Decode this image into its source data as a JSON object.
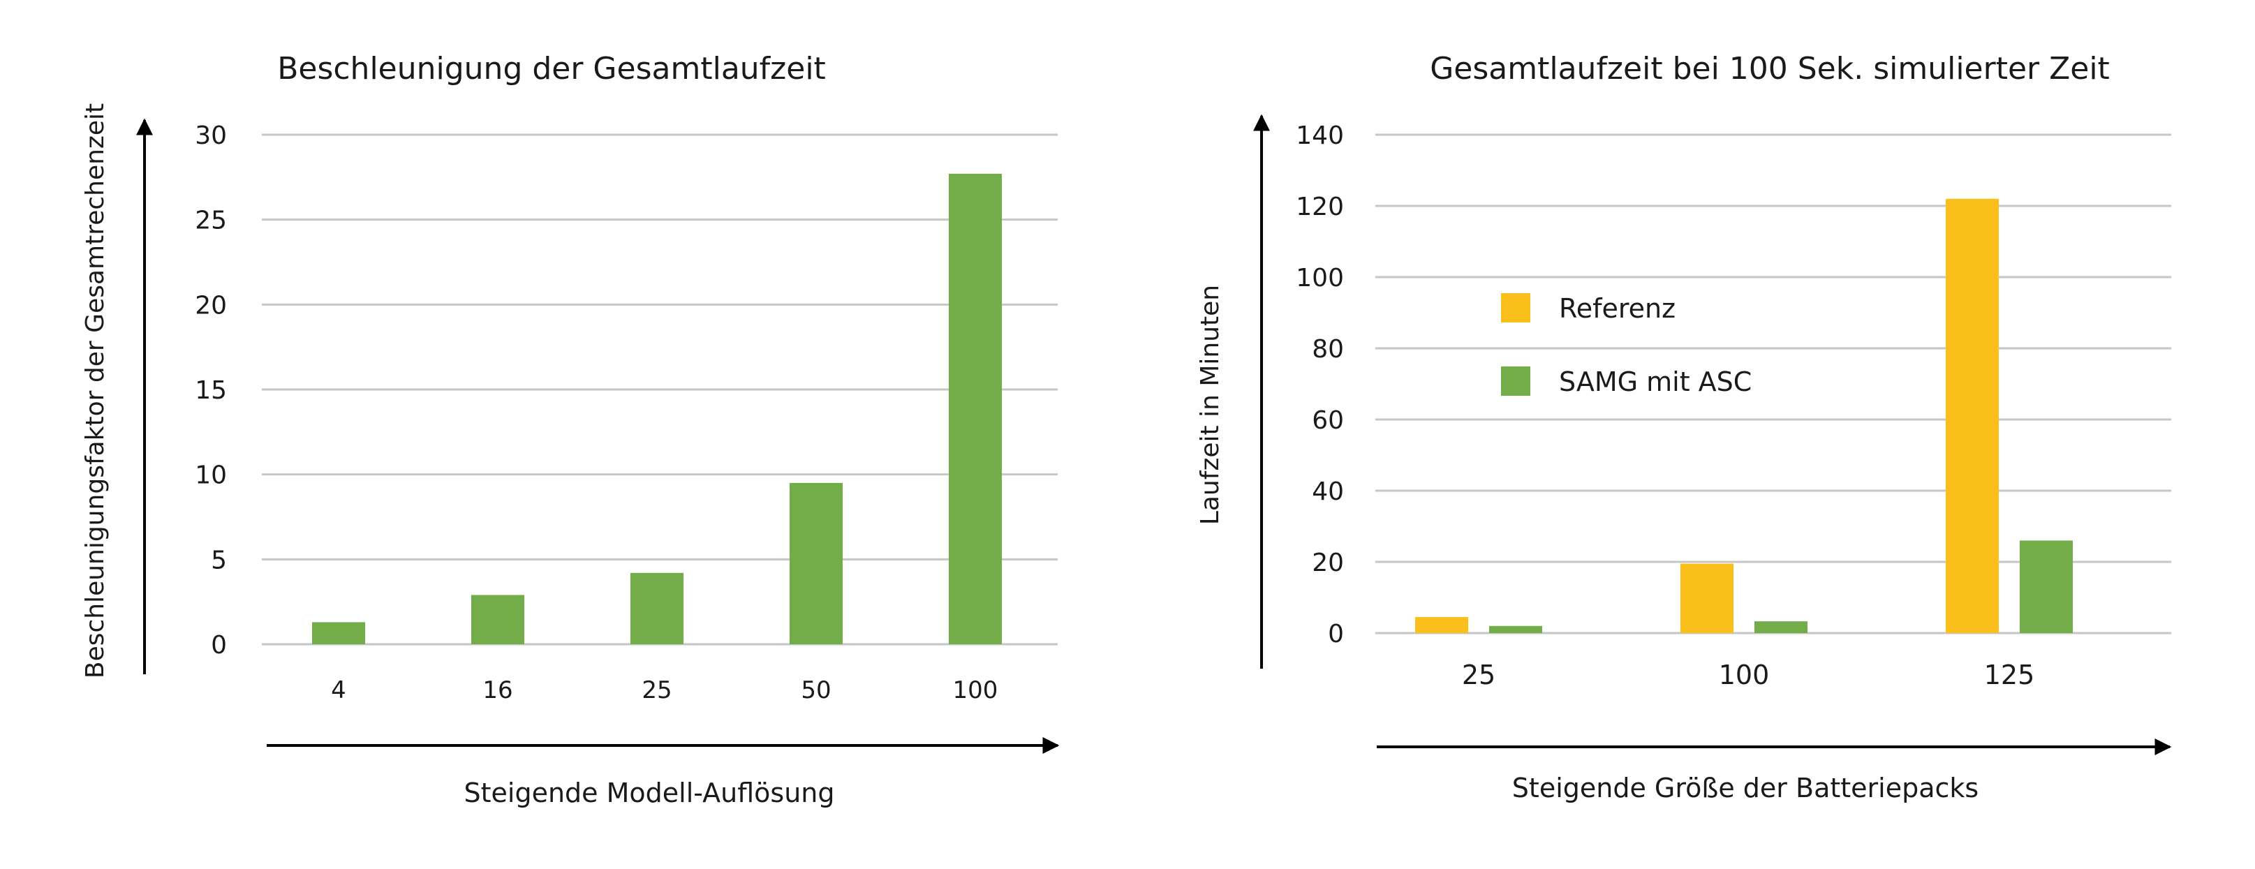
{
  "colors": {
    "green": "#72ad4a",
    "yellow": "#fbbf1b",
    "grid": "#c6c6c6",
    "text": "#1a1a1a",
    "arrow": "#000000"
  },
  "chart_data": [
    {
      "type": "bar",
      "title": "Beschleunigung der Gesamtlaufzeit",
      "xlabel": "Steigende Modell-Auflösung",
      "ylabel": "Beschleunigungsfaktor der Gesamtrechenzeit",
      "categories": [
        "4",
        "16",
        "25",
        "50",
        "100"
      ],
      "series": [
        {
          "values": [
            1.3,
            2.9,
            4.2,
            9.5,
            27.7
          ],
          "color": "#72ad4a"
        }
      ],
      "ylim": [
        0,
        30
      ],
      "yticks": [
        "0",
        "5",
        "10",
        "15",
        "20",
        "25",
        "30"
      ],
      "grid": true,
      "legend": "none"
    },
    {
      "type": "bar",
      "title": "Gesamtlaufzeit bei 100 Sek. simulierter Zeit",
      "xlabel": "Steigende Größe der Batteriepacks",
      "ylabel": "Laufzeit in Minuten",
      "categories": [
        "25",
        "100",
        "125"
      ],
      "series": [
        {
          "name": "Referenz",
          "values": [
            4.5,
            19.5,
            122
          ],
          "color": "#fbbf1b"
        },
        {
          "name": "SAMG mit ASC",
          "values": [
            2,
            3.3,
            26
          ],
          "color": "#72ad4a"
        }
      ],
      "ylim": [
        0,
        140
      ],
      "yticks": [
        "0",
        "20",
        "40",
        "60",
        "80",
        "100",
        "120",
        "140"
      ],
      "grid": true,
      "legend": "upper-left"
    }
  ]
}
